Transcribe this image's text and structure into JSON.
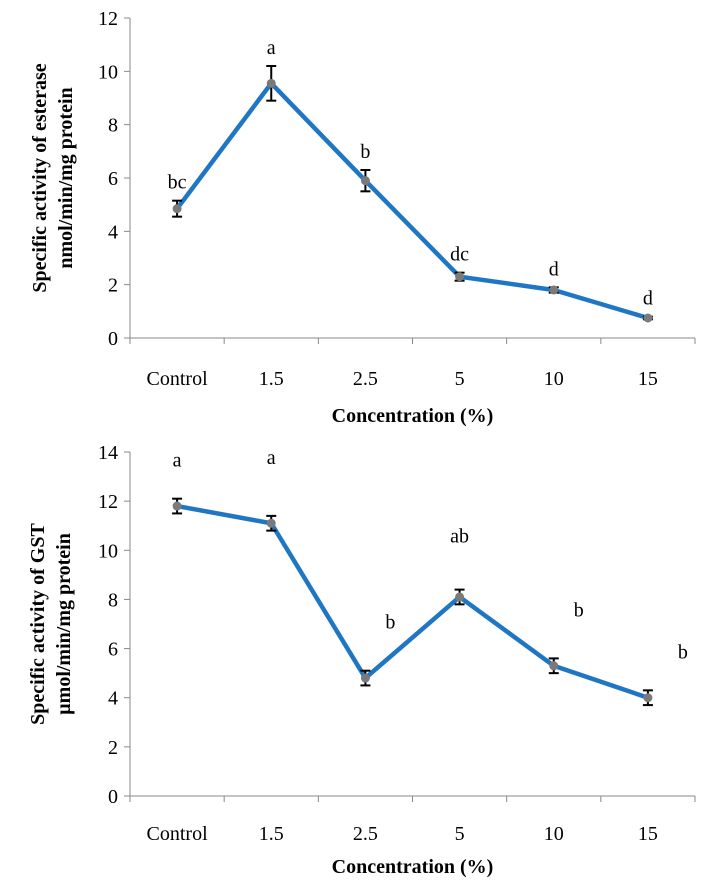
{
  "accent_color": "#1f77c4",
  "chart_data": [
    {
      "type": "line",
      "title": "",
      "xlabel": "Concentration (%)",
      "ylabel": [
        "Specific activity of esterase",
        "nmol/min/mg protein"
      ],
      "categories": [
        "Control",
        "1.5",
        "2.5",
        "5",
        "10",
        "15"
      ],
      "values": [
        4.85,
        9.55,
        5.9,
        2.3,
        1.8,
        0.75
      ],
      "errors": [
        0.3,
        0.65,
        0.4,
        0.15,
        0.1,
        0.05
      ],
      "significance_labels": [
        "bc",
        "a",
        "b",
        "dc",
        "d",
        "d"
      ],
      "ylim": [
        0,
        12
      ],
      "yticks": [
        "0",
        "2",
        "4",
        "6",
        "8",
        "10",
        "12"
      ],
      "grid": false,
      "legend": "none"
    },
    {
      "type": "line",
      "title": "",
      "xlabel": "Concentration (%)",
      "ylabel": [
        "Specific activity of GST",
        "µmol/min/mg protein"
      ],
      "categories": [
        "Control",
        "1.5",
        "2.5",
        "5",
        "10",
        "15"
      ],
      "values": [
        11.8,
        11.1,
        4.8,
        8.1,
        5.3,
        4.0
      ],
      "errors": [
        0.3,
        0.3,
        0.3,
        0.3,
        0.3,
        0.3
      ],
      "significance_labels": [
        "a",
        "a",
        "b",
        "ab",
        "b",
        "b"
      ],
      "ylim": [
        0,
        14
      ],
      "yticks": [
        "0",
        "2",
        "4",
        "6",
        "8",
        "10",
        "12",
        "14"
      ],
      "grid": false,
      "legend": "none"
    }
  ]
}
